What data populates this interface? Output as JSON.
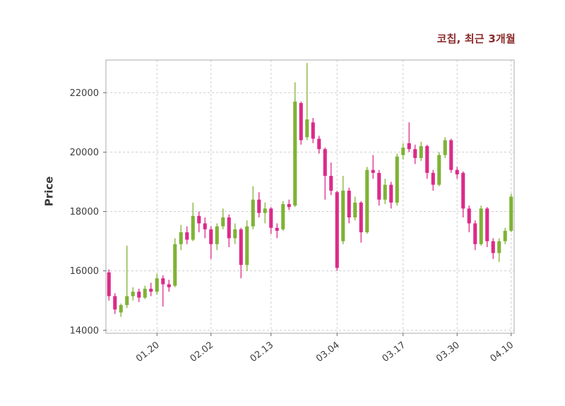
{
  "chart": {
    "title": "코칩, 최근 3개월",
    "title_color": "#8b2a2a",
    "ylabel": "Price"
  },
  "chart_data": {
    "type": "candlestick",
    "title": "코칩, 최근 3개월",
    "subtitle": "",
    "xlabel": "",
    "ylabel": "Price",
    "ylim": [
      13900,
      23100
    ],
    "y_ticks": [
      14000,
      16000,
      18000,
      20000,
      22000
    ],
    "x_ticks": [
      {
        "index": 8,
        "label": "01.20"
      },
      {
        "index": 17,
        "label": "02.02"
      },
      {
        "index": 27,
        "label": "02.13"
      },
      {
        "index": 38,
        "label": "03.04"
      },
      {
        "index": 49,
        "label": "03.17"
      },
      {
        "index": 58,
        "label": "03.30"
      },
      {
        "index": 67,
        "label": "04.10"
      }
    ],
    "grid": true,
    "grid_style": "dashed",
    "legend_position": "none",
    "up_color": "#7fb335",
    "down_color": "#dd2a8a",
    "ohlc_format": [
      "open",
      "high",
      "low",
      "close"
    ],
    "candles": [
      [
        15950,
        16050,
        15000,
        15150
      ],
      [
        15150,
        15250,
        14550,
        14700
      ],
      [
        14600,
        14900,
        14450,
        14850
      ],
      [
        14850,
        16850,
        14750,
        15150
      ],
      [
        15150,
        15450,
        15000,
        15300
      ],
      [
        15300,
        15400,
        14950,
        15100
      ],
      [
        15100,
        15500,
        15050,
        15400
      ],
      [
        15400,
        15600,
        15150,
        15300
      ],
      [
        15300,
        15900,
        15200,
        15750
      ],
      [
        15750,
        15850,
        14800,
        15550
      ],
      [
        15550,
        15700,
        15300,
        15450
      ],
      [
        15500,
        17100,
        15450,
        16900
      ],
      [
        16900,
        17550,
        16700,
        17300
      ],
      [
        17300,
        17500,
        16900,
        17050
      ],
      [
        17050,
        18300,
        17000,
        17850
      ],
      [
        17850,
        18000,
        17300,
        17600
      ],
      [
        17600,
        17800,
        17100,
        17400
      ],
      [
        17400,
        17500,
        16400,
        16900
      ],
      [
        16900,
        17600,
        16700,
        17500
      ],
      [
        17500,
        18100,
        17400,
        17800
      ],
      [
        17800,
        17900,
        16800,
        17100
      ],
      [
        17100,
        17600,
        16900,
        17400
      ],
      [
        17400,
        17450,
        15750,
        16200
      ],
      [
        16200,
        17700,
        16000,
        17500
      ],
      [
        17500,
        18850,
        17400,
        18400
      ],
      [
        18400,
        18650,
        17800,
        17950
      ],
      [
        17950,
        18300,
        17600,
        18100
      ],
      [
        18100,
        18150,
        17250,
        17450
      ],
      [
        17450,
        17600,
        17100,
        17350
      ],
      [
        17400,
        18350,
        17350,
        18250
      ],
      [
        18250,
        18400,
        18050,
        18150
      ],
      [
        18200,
        22350,
        18150,
        21700
      ],
      [
        21650,
        21700,
        20250,
        20400
      ],
      [
        20500,
        23000,
        20400,
        21100
      ],
      [
        21000,
        21150,
        20300,
        20450
      ],
      [
        20450,
        20550,
        19950,
        20100
      ],
      [
        20100,
        20150,
        18400,
        19200
      ],
      [
        19200,
        19650,
        18550,
        18700
      ],
      [
        18650,
        18700,
        16000,
        16100
      ],
      [
        17000,
        19200,
        16900,
        18700
      ],
      [
        18700,
        18800,
        17600,
        17800
      ],
      [
        17800,
        18500,
        17700,
        18300
      ],
      [
        18300,
        18350,
        16950,
        17300
      ],
      [
        17300,
        19500,
        17250,
        19400
      ],
      [
        19400,
        19900,
        19100,
        19300
      ],
      [
        19300,
        19400,
        18200,
        18400
      ],
      [
        18400,
        19100,
        18250,
        18900
      ],
      [
        18900,
        19000,
        18100,
        18300
      ],
      [
        18300,
        19950,
        18200,
        19850
      ],
      [
        19900,
        20300,
        19750,
        20150
      ],
      [
        20300,
        21000,
        20000,
        20100
      ],
      [
        20100,
        20250,
        19600,
        19800
      ],
      [
        19800,
        20350,
        19700,
        20200
      ],
      [
        20200,
        20250,
        19100,
        19300
      ],
      [
        19300,
        19400,
        18700,
        18900
      ],
      [
        18900,
        20000,
        18850,
        19900
      ],
      [
        19900,
        20500,
        19800,
        20400
      ],
      [
        20400,
        20450,
        19300,
        19400
      ],
      [
        19400,
        19500,
        19100,
        19250
      ],
      [
        19300,
        19350,
        17800,
        18100
      ],
      [
        18100,
        18200,
        17300,
        17600
      ],
      [
        17600,
        17700,
        16700,
        16900
      ],
      [
        16900,
        18200,
        16850,
        18100
      ],
      [
        18100,
        18150,
        16800,
        17000
      ],
      [
        17000,
        17100,
        16400,
        16600
      ],
      [
        16600,
        17100,
        16300,
        17000
      ],
      [
        17000,
        17450,
        16900,
        17350
      ],
      [
        17350,
        18600,
        17300,
        18500
      ]
    ]
  }
}
